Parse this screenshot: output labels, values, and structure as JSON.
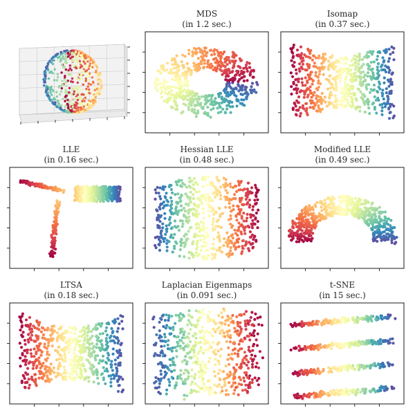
{
  "chart_data": [
    {
      "type": "scatter",
      "id": "sphere-3d",
      "title": "",
      "projection": "3d",
      "description_values": {
        "points": 600,
        "colormap": "Spectral"
      }
    },
    {
      "type": "scatter",
      "id": "mds",
      "title": "MDS\n(in 1.2 sec.)",
      "title_lines": [
        "MDS",
        "(in 1.2 sec.)"
      ],
      "method": "MDS",
      "time_sec": 1.2
    },
    {
      "type": "scatter",
      "id": "isomap",
      "title": "Isomap\n(in 0.37 sec.)",
      "title_lines": [
        "Isomap",
        "(in 0.37 sec.)"
      ],
      "method": "Isomap",
      "time_sec": 0.37
    },
    {
      "type": "scatter",
      "id": "lle",
      "title": "LLE\n(in 0.16 sec.)",
      "title_lines": [
        "LLE",
        "(in 0.16 sec.)"
      ],
      "method": "LLE",
      "time_sec": 0.16
    },
    {
      "type": "scatter",
      "id": "hessian-lle",
      "title": "Hessian LLE\n(in 0.48 sec.)",
      "title_lines": [
        "Hessian LLE",
        "(in 0.48 sec.)"
      ],
      "method": "Hessian LLE",
      "time_sec": 0.48
    },
    {
      "type": "scatter",
      "id": "modified-lle",
      "title": "Modified LLE\n(in 0.49 sec.)",
      "title_lines": [
        "Modified LLE",
        "(in 0.49 sec.)"
      ],
      "method": "Modified LLE",
      "time_sec": 0.49
    },
    {
      "type": "scatter",
      "id": "ltsa",
      "title": "LTSA\n(in 0.18 sec.)",
      "title_lines": [
        "LTSA",
        "(in 0.18 sec.)"
      ],
      "method": "LTSA",
      "time_sec": 0.18
    },
    {
      "type": "scatter",
      "id": "laplacian",
      "title": "Laplacian Eigenmaps\n(in 0.091 sec.)",
      "title_lines": [
        "Laplacian Eigenmaps",
        "(in 0.091 sec.)"
      ],
      "method": "Laplacian Eigenmaps",
      "time_sec": 0.091
    },
    {
      "type": "scatter",
      "id": "tsne",
      "title": "t-SNE\n(in 15 sec.)",
      "title_lines": [
        "t-SNE",
        "(in 15 sec.)"
      ],
      "method": "t-SNE",
      "time_sec": 15
    }
  ],
  "colormap": [
    "#9e0142",
    "#d53e4f",
    "#f46d43",
    "#fdae61",
    "#fee08b",
    "#ffffbf",
    "#e6f598",
    "#abdda4",
    "#66c2a5",
    "#3288bd",
    "#5e4fa2"
  ]
}
